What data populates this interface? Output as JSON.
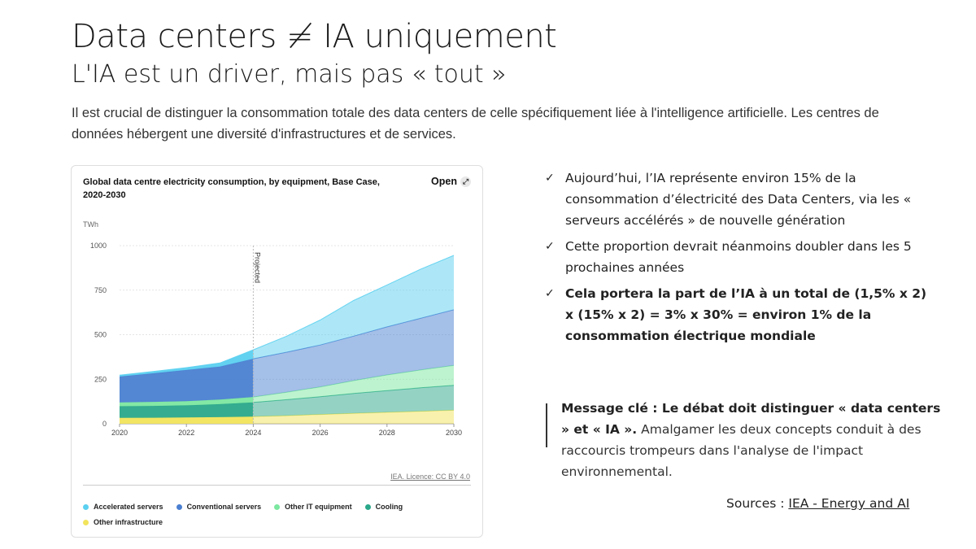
{
  "slide": {
    "title": "Data centers ≠ IA uniquement",
    "subtitle": "L'IA est un driver, mais pas « tout »",
    "intro": "Il est crucial de distinguer la consommation totale des data centers de celle spécifiquement liée à l'intelligence artificielle. Les centres de données hébergent une diversité d'infrastructures et de services."
  },
  "card": {
    "title": "Global data centre electricity consumption, by equipment, Base Case, 2020-2030",
    "open_label": "Open",
    "open_icon": "expand-arrow-icon",
    "source_label": "IEA. Licence: CC BY 4.0"
  },
  "chart_data": {
    "type": "area",
    "title": "Global data centre electricity consumption, by equipment, Base Case, 2020-2030",
    "ylabel": "TWh",
    "xlabel": "",
    "x": [
      2020,
      2021,
      2022,
      2023,
      2024,
      2025,
      2026,
      2027,
      2028,
      2029,
      2030
    ],
    "xticks": [
      "2020",
      "2022",
      "2024",
      "2026",
      "2028",
      "2030"
    ],
    "yticks": [
      "0",
      "250",
      "500",
      "750",
      "1000"
    ],
    "ylim": [
      0,
      1000
    ],
    "xlim": [
      2020,
      2030
    ],
    "stacked": true,
    "projected_from": 2024,
    "projected_label": "Projected",
    "grid": true,
    "legend_position": "bottom",
    "series": [
      {
        "name": "Other infrastructure",
        "color": "#f2e45c",
        "values": [
          33,
          34,
          35,
          37,
          40,
          45,
          52,
          58,
          64,
          70,
          76
        ]
      },
      {
        "name": "Cooling",
        "color": "#2aa88a",
        "values": [
          65,
          66,
          68,
          73,
          80,
          90,
          100,
          112,
          122,
          132,
          140
        ]
      },
      {
        "name": "Other IT equipment",
        "color": "#7ce7a0",
        "values": [
          22,
          23,
          24,
          26,
          30,
          42,
          55,
          72,
          88,
          100,
          112
        ]
      },
      {
        "name": "Conventional servers",
        "color": "#4a7fd1",
        "values": [
          145,
          160,
          175,
          185,
          215,
          225,
          235,
          250,
          270,
          290,
          312
        ]
      },
      {
        "name": "Accelerated servers",
        "color": "#5bd0f0",
        "values": [
          8,
          10,
          13,
          20,
          50,
          90,
          140,
          200,
          235,
          275,
          305
        ]
      }
    ]
  },
  "legend": [
    {
      "label": "Accelerated servers",
      "color": "#5bd0f0"
    },
    {
      "label": "Conventional servers",
      "color": "#4a7fd1"
    },
    {
      "label": "Other IT equipment",
      "color": "#7ce7a0"
    },
    {
      "label": "Cooling",
      "color": "#2aa88a"
    },
    {
      "label": "Other infrastructure",
      "color": "#f2e45c"
    }
  ],
  "bullets": [
    {
      "text": "Aujourd’hui, l’IA représente environ 15% de la consommation d’électricité des Data Centers, via les « serveurs accélérés » de nouvelle génération"
    },
    {
      "text": "Cette proportion devrait néanmoins doubler dans les 5 prochaines années"
    },
    {
      "text": "Cela portera la part de l’IA à un total de (1,5% x 2) x (15% x 2) = 3% x 30% = environ 1% de la consommation électrique mondiale"
    }
  ],
  "message": {
    "label": "Message clé : Le débat doit distinguer « data centers » et « IA ».",
    "body": " Amalgamer les deux concepts conduit à des raccourcis trompeurs dans l'analyse de l'impact environnemental."
  },
  "sources": {
    "prefix": "Sources : ",
    "link": "IEA - Energy and AI"
  }
}
